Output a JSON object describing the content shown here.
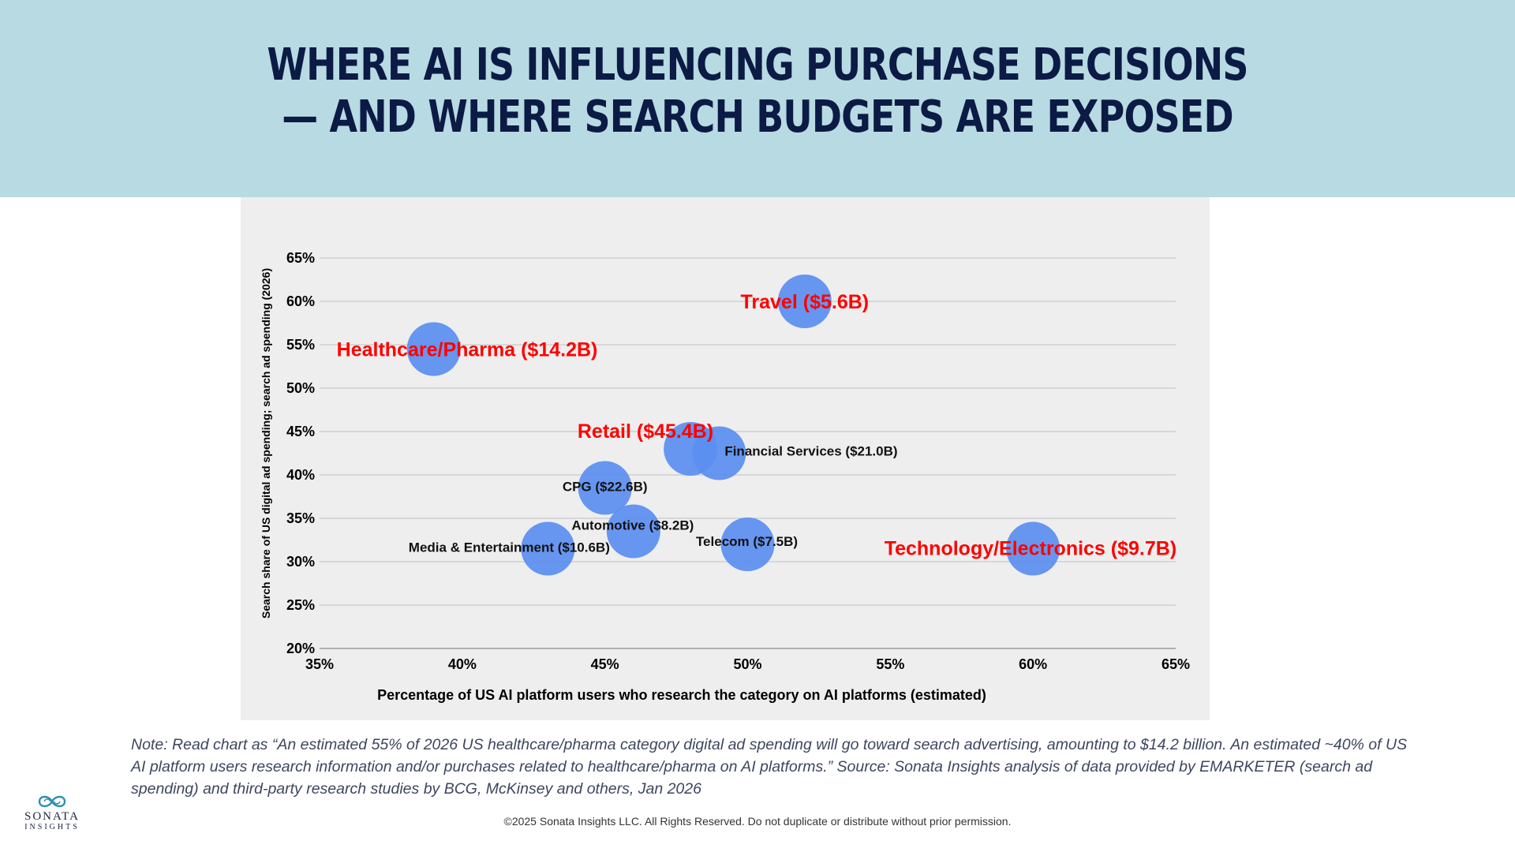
{
  "header": {
    "title_line1": "Where AI is influencing purchase decisions",
    "title_line2": "— and where search budgets are exposed"
  },
  "chart_data": {
    "type": "bubble",
    "xlabel": "Percentage of US AI platform users who research the category on AI platforms (estimated)",
    "ylabel": "Search share of US digital ad spending; search ad spending (2026)",
    "xlim": [
      35,
      65
    ],
    "ylim": [
      20,
      65
    ],
    "x_ticks": [
      35,
      40,
      45,
      50,
      55,
      60,
      65
    ],
    "y_ticks": [
      20,
      25,
      30,
      35,
      40,
      45,
      50,
      55,
      60,
      65
    ],
    "x_tick_labels": [
      "35%",
      "40%",
      "45%",
      "50%",
      "55%",
      "60%",
      "65%"
    ],
    "y_tick_labels": [
      "20%",
      "25%",
      "30%",
      "35%",
      "40%",
      "45%",
      "50%",
      "55%",
      "60%",
      "65%"
    ],
    "grid": true,
    "bubble_color": "#5b8ff0",
    "highlight_color": "#ff0000",
    "points": [
      {
        "label": "Healthcare/Pharma ($14.2B)",
        "x": 39,
        "y": 54.5,
        "highlight": true,
        "label_pos": "center-right"
      },
      {
        "label": "Travel ($5.6B)",
        "x": 52,
        "y": 60,
        "highlight": true,
        "label_pos": "center"
      },
      {
        "label": "Retail ($45.4B)",
        "x": 48,
        "y": 43,
        "highlight": true,
        "label_pos": "top-left"
      },
      {
        "label": "Financial Services ($21.0B)",
        "x": 49,
        "y": 42.5,
        "highlight": false,
        "label_pos": "right"
      },
      {
        "label": "CPG ($22.6B)",
        "x": 45,
        "y": 38.5,
        "highlight": false,
        "label_pos": "center"
      },
      {
        "label": "Automotive ($8.2B)",
        "x": 46,
        "y": 33.5,
        "highlight": false,
        "label_pos": "center"
      },
      {
        "label": "Media & Entertainment ($10.6B)",
        "x": 43,
        "y": 31.5,
        "highlight": false,
        "label_pos": "center"
      },
      {
        "label": "Telecom ($7.5B)",
        "x": 50,
        "y": 32,
        "highlight": false,
        "label_pos": "center"
      },
      {
        "label": "Technology/Electronics ($9.7B)",
        "x": 60,
        "y": 31.5,
        "highlight": true,
        "label_pos": "left"
      }
    ]
  },
  "note": "Note: Read chart as “An estimated 55% of 2026 US healthcare/pharma category digital ad spending will go toward search advertising, amounting to $14.2 billion. An estimated ~40% of US AI platform users research information and/or purchases related to healthcare/pharma on AI platforms.”  Source: Sonata Insights analysis of data provided by EMARKETER (search ad spending) and third-party research studies by BCG, McKinsey and others, Jan 2026",
  "footer": {
    "copyright": "©2025 Sonata Insights LLC. All Rights Reserved. Do not duplicate or distribute without prior permission.",
    "logo_line1": "SONATA",
    "logo_line2": "INSIGHTS",
    "logo_icon": "infinity-wave-icon"
  }
}
